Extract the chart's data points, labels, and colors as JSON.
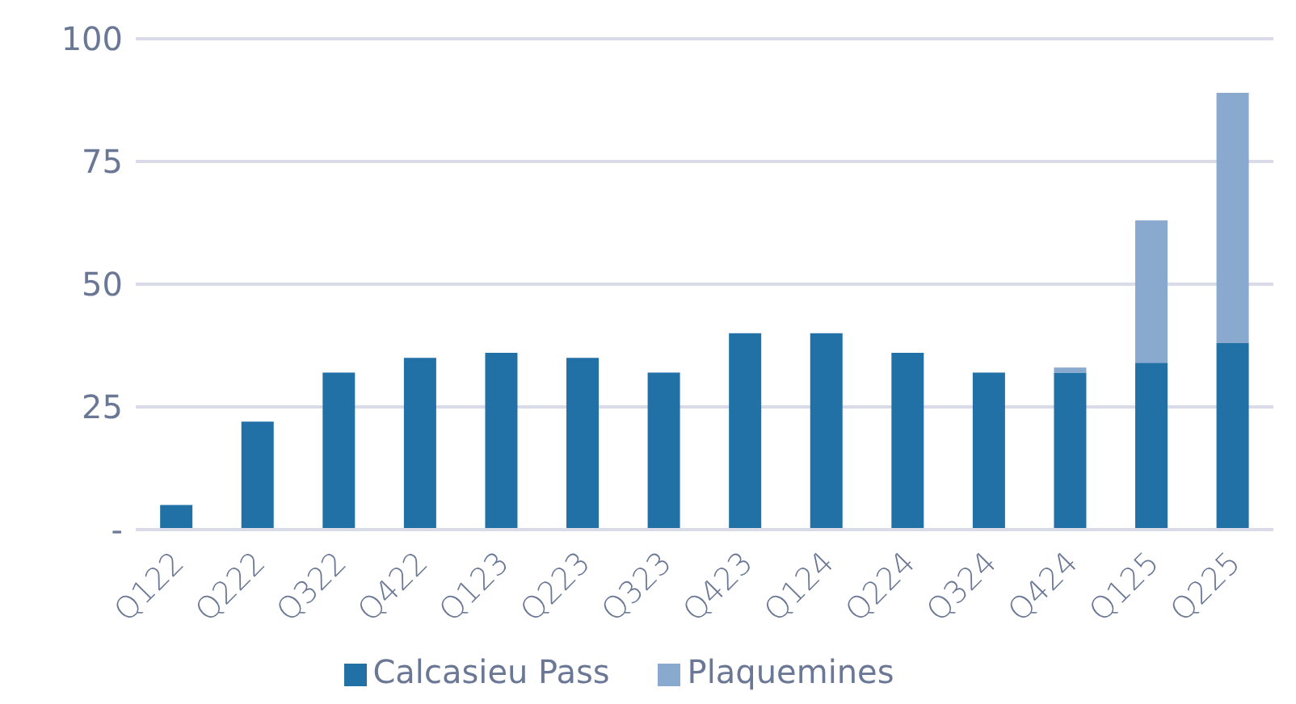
{
  "chart_data": {
    "type": "bar",
    "stacked": true,
    "categories": [
      "Q122",
      "Q222",
      "Q322",
      "Q422",
      "Q123",
      "Q223",
      "Q323",
      "Q423",
      "Q124",
      "Q224",
      "Q324",
      "Q424",
      "Q125",
      "Q225"
    ],
    "series": [
      {
        "name": "Calcasieu Pass",
        "color": "#2171a7",
        "values": [
          5,
          22,
          32,
          35,
          36,
          35,
          32,
          40,
          40,
          36,
          32,
          32,
          34,
          38
        ]
      },
      {
        "name": "Plaquemines",
        "color": "#89a9cf",
        "values": [
          0,
          0,
          0,
          0,
          0,
          0,
          0,
          0,
          0,
          0,
          0,
          1,
          29,
          51
        ]
      }
    ],
    "ylim": [
      0,
      100
    ],
    "yticks": [
      {
        "value": 0,
        "label": "-"
      },
      25,
      50,
      75,
      100
    ],
    "grid": "y",
    "legend": "bottom"
  }
}
